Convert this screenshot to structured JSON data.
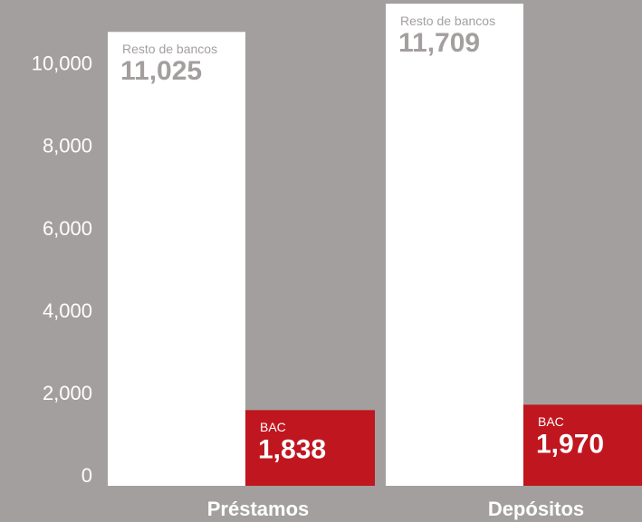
{
  "chart_data": {
    "type": "bar",
    "categories": [
      "Préstamos",
      "Depósitos"
    ],
    "series": [
      {
        "name": "Resto de bancos",
        "color": "#ffffff",
        "label_color": "#a39f9e",
        "values": [
          11025,
          11709
        ],
        "value_labels": [
          "11,025",
          "11,709"
        ]
      },
      {
        "name": "BAC",
        "color": "#c0161f",
        "label_color": "#ffffff",
        "values": [
          1838,
          1970
        ],
        "value_labels": [
          "1,838",
          "1,970"
        ]
      }
    ],
    "ylim": [
      0,
      11800
    ],
    "yticks": [
      0,
      {
        "value": 2000,
        "label": "2,000"
      },
      {
        "value": 4000,
        "label": "4,000"
      },
      {
        "value": 6000,
        "label": "6,000"
      },
      {
        "value": 8000,
        "label": "8,000"
      },
      {
        "value": 10000,
        "label": "10,000"
      }
    ],
    "grid": false
  }
}
